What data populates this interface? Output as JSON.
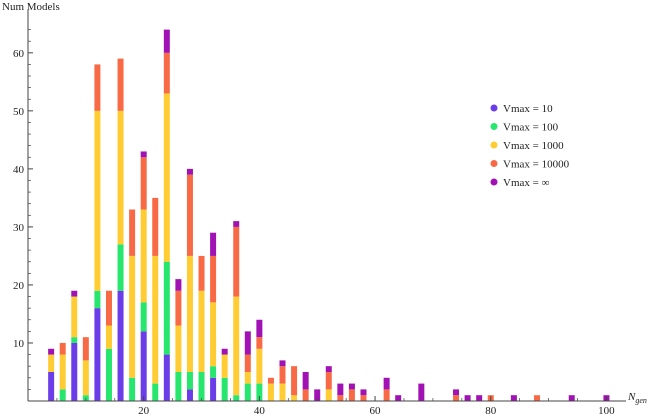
{
  "chart_data": {
    "type": "bar",
    "stacked": true,
    "ylabel": "Num Models",
    "xlabel_main": "N",
    "xlabel_sub": "gen",
    "xlim": [
      0,
      102
    ],
    "ylim": [
      0,
      66
    ],
    "xticks": [
      20,
      40,
      60,
      80,
      100
    ],
    "yticks": [
      10,
      20,
      30,
      40,
      50,
      60
    ],
    "legend_position": "right",
    "series": [
      {
        "name": "Vmax = 10",
        "color": "#6a3de8"
      },
      {
        "name": "Vmax = 100",
        "color": "#27e66d"
      },
      {
        "name": "Vmax = 1000",
        "color": "#ffcc33"
      },
      {
        "name": "Vmax = 10000",
        "color": "#f86a45"
      },
      {
        "name": "Vmax = ∞",
        "color": "#a012b4"
      }
    ],
    "bars": [
      {
        "x": 4,
        "values": [
          5,
          0,
          3,
          0,
          1
        ]
      },
      {
        "x": 6,
        "values": [
          0,
          2,
          6,
          2,
          0
        ]
      },
      {
        "x": 8,
        "values": [
          10,
          1,
          7,
          0,
          1
        ]
      },
      {
        "x": 10,
        "values": [
          0,
          1,
          6,
          4,
          0
        ]
      },
      {
        "x": 12,
        "values": [
          16,
          3,
          31,
          8,
          0
        ]
      },
      {
        "x": 14,
        "values": [
          0,
          9,
          4,
          6,
          0
        ]
      },
      {
        "x": 16,
        "values": [
          19,
          8,
          23,
          9,
          0
        ]
      },
      {
        "x": 18,
        "values": [
          0,
          4,
          21,
          8,
          0
        ]
      },
      {
        "x": 20,
        "values": [
          12,
          5,
          16,
          9,
          1
        ]
      },
      {
        "x": 22,
        "values": [
          0,
          3,
          22,
          10,
          0
        ]
      },
      {
        "x": 24,
        "values": [
          8,
          16,
          29,
          7,
          4
        ]
      },
      {
        "x": 26,
        "values": [
          0,
          5,
          8,
          6,
          2
        ]
      },
      {
        "x": 28,
        "values": [
          2,
          3,
          20,
          14,
          1
        ]
      },
      {
        "x": 30,
        "values": [
          0,
          5,
          14,
          6,
          0
        ]
      },
      {
        "x": 32,
        "values": [
          4,
          2,
          11,
          8,
          4
        ]
      },
      {
        "x": 34,
        "values": [
          0,
          4,
          4,
          0,
          1
        ]
      },
      {
        "x": 36,
        "values": [
          0,
          1,
          17,
          12,
          1
        ]
      },
      {
        "x": 38,
        "values": [
          0,
          3,
          2,
          3,
          4
        ]
      },
      {
        "x": 40,
        "values": [
          0,
          3,
          6,
          2,
          3
        ]
      },
      {
        "x": 42,
        "values": [
          0,
          0,
          3,
          1,
          0
        ]
      },
      {
        "x": 44,
        "values": [
          0,
          0,
          3,
          3,
          1
        ]
      },
      {
        "x": 46,
        "values": [
          0,
          0,
          1,
          5,
          0
        ]
      },
      {
        "x": 48,
        "values": [
          0,
          0,
          0,
          2,
          3
        ]
      },
      {
        "x": 50,
        "values": [
          0,
          0,
          0,
          0,
          2
        ]
      },
      {
        "x": 52,
        "values": [
          0,
          0,
          2,
          3,
          1
        ]
      },
      {
        "x": 54,
        "values": [
          0,
          0,
          0,
          1,
          2
        ]
      },
      {
        "x": 56,
        "values": [
          0,
          0,
          0,
          2,
          1
        ]
      },
      {
        "x": 58,
        "values": [
          0,
          0,
          0,
          1,
          1
        ]
      },
      {
        "x": 60,
        "values": [
          0,
          0,
          0,
          0,
          0
        ]
      },
      {
        "x": 62,
        "values": [
          0,
          0,
          0,
          2,
          2
        ]
      },
      {
        "x": 64,
        "values": [
          0,
          0,
          0,
          0,
          1
        ]
      },
      {
        "x": 68,
        "values": [
          0,
          0,
          0,
          0,
          3
        ]
      },
      {
        "x": 74,
        "values": [
          0,
          0,
          0,
          1,
          1
        ]
      },
      {
        "x": 76,
        "values": [
          0,
          0,
          0,
          0,
          1
        ]
      },
      {
        "x": 78,
        "values": [
          0,
          0,
          0,
          0,
          1
        ]
      },
      {
        "x": 80,
        "values": [
          0,
          0,
          0,
          1,
          0
        ]
      },
      {
        "x": 84,
        "values": [
          0,
          0,
          0,
          0,
          1
        ]
      },
      {
        "x": 88,
        "values": [
          0,
          0,
          0,
          1,
          0
        ]
      },
      {
        "x": 94,
        "values": [
          0,
          0,
          0,
          0,
          1
        ]
      },
      {
        "x": 100,
        "values": [
          0,
          0,
          0,
          0,
          1
        ]
      }
    ]
  }
}
